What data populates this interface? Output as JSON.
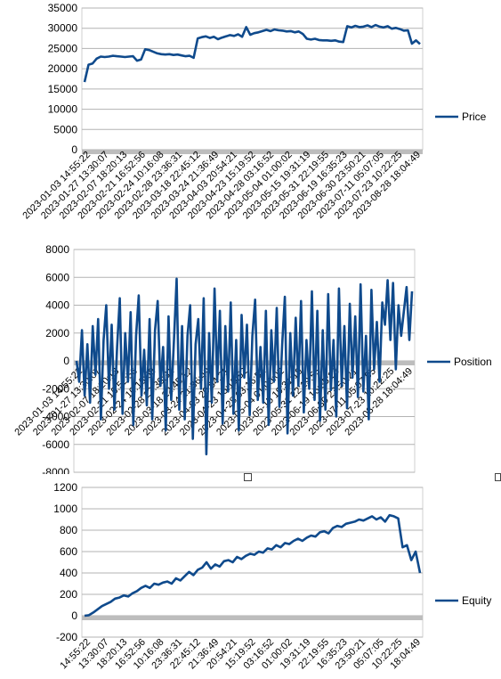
{
  "colors": {
    "series": "#0f4a8c",
    "grid": "#b3b3b3",
    "axis_band": "#bdbdbd",
    "frame": "#cfcfcf"
  },
  "chart_data": [
    {
      "type": "line",
      "series": [
        {
          "name": "Price",
          "values": [
            16700,
            21000,
            21300,
            22500,
            23000,
            22900,
            23000,
            23200,
            23100,
            23000,
            22900,
            23000,
            23100,
            22000,
            22300,
            24800,
            24600,
            24200,
            23800,
            23600,
            23500,
            23600,
            23400,
            23500,
            23300,
            23100,
            23200,
            22700,
            27500,
            27800,
            28000,
            27600,
            27900,
            27300,
            27700,
            28000,
            28300,
            28100,
            28500,
            27900,
            30300,
            28400,
            28800,
            29000,
            29300,
            29600,
            29300,
            29700,
            29500,
            29400,
            29200,
            29300,
            29000,
            29200,
            28600,
            27400,
            27200,
            27400,
            27100,
            27000,
            27000,
            26900,
            27000,
            26700,
            26600,
            30500,
            30200,
            30600,
            30300,
            30400,
            30700,
            30300,
            30800,
            30400,
            30200,
            30500,
            29900,
            30100,
            29800,
            29400,
            29500,
            26200,
            27000,
            26100
          ]
        }
      ],
      "yticks": [
        "35000",
        "30000",
        "25000",
        "20000",
        "15000",
        "10000",
        "5000",
        "0"
      ],
      "ylim": [
        0,
        35000
      ],
      "xticks": [
        "2023-01-03 14:55:22",
        "2023-01-27 13:30:07",
        "2023-02-07 18:20:13",
        "2023-02-21 16:52:56",
        "2023-02-24 10:16:08",
        "2023-02-28 23:36:31",
        "2023-03-18 22:45:12",
        "2023-03-24 21:36:49",
        "2023-04-03 20:54:21",
        "2023-04-23 15:19:52",
        "2023-04-28 03:16:52",
        "2023-05-04 01:00:02",
        "2023-05-15 19:31:19",
        "2023-05-31 22:19:55",
        "2023-06-19 16:35:23",
        "2023-06-30 23:50:21",
        "2023-07-11 05:07:05",
        "2023-07-23 10:22:25",
        "2023-08-28 18:04:49"
      ],
      "grid": true,
      "legend": "right"
    },
    {
      "type": "line",
      "series": [
        {
          "name": "Position",
          "values": [
            0,
            -1500,
            2200,
            -2500,
            1200,
            -3000,
            2500,
            -1000,
            3000,
            -4200,
            1500,
            4000,
            -2000,
            2600,
            -3500,
            1000,
            4500,
            -3800,
            2000,
            -1500,
            3500,
            -4600,
            1800,
            4700,
            -2500,
            800,
            -3200,
            3000,
            -4200,
            2200,
            4300,
            -1800,
            1000,
            -5000,
            3200,
            -2800,
            1500,
            5900,
            -3500,
            2500,
            -4200,
            1800,
            4000,
            -5600,
            1200,
            3000,
            -2000,
            4500,
            -6700,
            2000,
            -3000,
            5200,
            -1500,
            3600,
            -4500,
            2500,
            -2200,
            4200,
            -3800,
            1500,
            -5000,
            3300,
            -1200,
            2600,
            -3900,
            1800,
            4400,
            -2800,
            1000,
            -3000,
            3600,
            -4600,
            2200,
            -1500,
            3800,
            -3300,
            1200,
            4600,
            -5200,
            2000,
            -2500,
            3100,
            -1800,
            4300,
            -3700,
            1500,
            -2000,
            5000,
            -2800,
            3600,
            -4300,
            2200,
            -3500,
            4800,
            -2100,
            1500,
            -4000,
            5200,
            -1800,
            2500,
            -3400,
            4100,
            -1200,
            3200,
            -2600,
            5500,
            -2200,
            1800,
            -4200,
            5100,
            -600,
            2800,
            -1500,
            4200,
            2600,
            5800,
            1500,
            5600,
            -600,
            4000,
            1800,
            3600,
            5300,
            1500,
            5000
          ]
        }
      ],
      "yticks": [
        "8000",
        "6000",
        "4000",
        "2000",
        "0",
        "-2000",
        "-4000",
        "-6000",
        "-8000"
      ],
      "ylim": [
        -8000,
        8000
      ],
      "xticks": [
        "2023-01-03 14:55:22",
        "2023-01-27 13:30:07",
        "2023-02-07 18:20:13",
        "2023-02-21 16:52:56",
        "2023-02-24 10:16:08",
        "2023-02-28 23:36:31",
        "2023-03-18 22:45:12",
        "2023-03-24 21:36:49",
        "2023-04-03 20:54:21",
        "2023-04-23 15:19:52",
        "2023-04-28 03:16:52",
        "2023-05-04 01:00:02",
        "2023-05-15 19:31:19",
        "2023-05-31 22:19:55",
        "2023-06-19 16:35:23",
        "2023-06-30 23:50:21",
        "2023-07-11 05:07:05",
        "2023-07-23 10:22:25",
        "2023-08-28 18:04:49"
      ],
      "grid": true,
      "legend": "right"
    },
    {
      "type": "line",
      "series": [
        {
          "name": "Equity",
          "values": [
            0,
            5,
            30,
            60,
            90,
            110,
            130,
            160,
            170,
            190,
            180,
            210,
            230,
            260,
            280,
            260,
            300,
            290,
            310,
            320,
            300,
            350,
            330,
            370,
            410,
            380,
            430,
            450,
            500,
            440,
            480,
            460,
            510,
            520,
            500,
            550,
            530,
            560,
            580,
            570,
            600,
            590,
            630,
            620,
            660,
            640,
            680,
            670,
            700,
            720,
            700,
            730,
            750,
            740,
            780,
            790,
            770,
            820,
            840,
            830,
            860,
            870,
            880,
            900,
            890,
            910,
            930,
            900,
            920,
            880,
            940,
            930,
            910,
            640,
            660,
            520,
            600,
            400
          ]
        }
      ],
      "yticks": [
        "1200",
        "1000",
        "800",
        "600",
        "400",
        "200",
        "0",
        "-200"
      ],
      "ylim": [
        -200,
        1200
      ],
      "xticks": [
        "14:55:22",
        "13:30:07",
        "18:20:13",
        "16:52:56",
        "10:16:08",
        "23:36:31",
        "22:45:12",
        "21:36:49",
        "20:54:21",
        "15:19:52",
        "03:16:52",
        "01:00:02",
        "19:31:19",
        "22:19:55",
        "16:35:23",
        "23:50:21",
        "05:07:05",
        "10:22:25",
        "18:04:49"
      ],
      "grid": true,
      "legend": "right"
    }
  ]
}
